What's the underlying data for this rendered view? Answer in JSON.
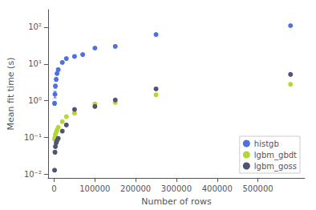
{
  "chart_data": {
    "type": "scatter",
    "xlabel": "Number of rows",
    "ylabel": "Mean fit time (s)",
    "marker": "circle",
    "log": "y",
    "grid": false,
    "legend": "lower right",
    "xlim": [
      -15000,
      615000
    ],
    "xticks": [
      0,
      100000,
      200000,
      300000,
      400000,
      500000
    ],
    "ylim": [
      0.008,
      300
    ],
    "yticks": [
      {
        "value": 0.01,
        "label": "10⁻²"
      },
      {
        "value": 0.1,
        "label": "10⁻¹"
      },
      {
        "value": 1,
        "label": "10⁰"
      },
      {
        "value": 10,
        "label": "10¹"
      },
      {
        "value": 100,
        "label": "10²"
      }
    ],
    "series": [
      {
        "name": "histgb",
        "x": [
          1000,
          2000,
          3000,
          5000,
          7000,
          10000,
          20000,
          30000,
          50000,
          70000,
          100000,
          150000,
          250000,
          580000
        ],
        "values": [
          0.85,
          1.5,
          2.5,
          3.8,
          5.5,
          7.0,
          11.0,
          14.0,
          16.0,
          18.0,
          27.0,
          30.0,
          63.0,
          110.0
        ],
        "yerr": [
          0.1,
          0.3,
          0.3,
          0.4,
          0.5,
          0.6,
          0.8,
          0.8,
          1.0,
          1.2,
          1.8,
          1.5,
          3.0,
          5.0
        ]
      },
      {
        "name": "lgbm_gbdt",
        "x": [
          1000,
          2000,
          3000,
          5000,
          7000,
          10000,
          20000,
          30000,
          50000,
          100000,
          150000,
          250000,
          580000
        ],
        "values": [
          0.09,
          0.1,
          0.12,
          0.14,
          0.16,
          0.19,
          0.27,
          0.37,
          0.46,
          0.82,
          0.9,
          1.45,
          2.8
        ],
        "yerr": [
          0.005,
          0.005,
          0.008,
          0.008,
          0.01,
          0.01,
          0.015,
          0.02,
          0.025,
          0.04,
          0.05,
          0.08,
          0.12
        ]
      },
      {
        "name": "lgbm_goss",
        "x": [
          1000,
          2000,
          3000,
          5000,
          7000,
          10000,
          20000,
          30000,
          50000,
          100000,
          150000,
          250000,
          580000
        ],
        "values": [
          0.013,
          0.04,
          0.057,
          0.072,
          0.082,
          0.095,
          0.15,
          0.22,
          0.58,
          0.7,
          1.05,
          2.1,
          5.2
        ],
        "yerr": [
          0.001,
          0.004,
          0.005,
          0.005,
          0.005,
          0.008,
          0.01,
          0.015,
          0.035,
          0.04,
          0.08,
          0.12,
          0.35
        ]
      }
    ]
  }
}
